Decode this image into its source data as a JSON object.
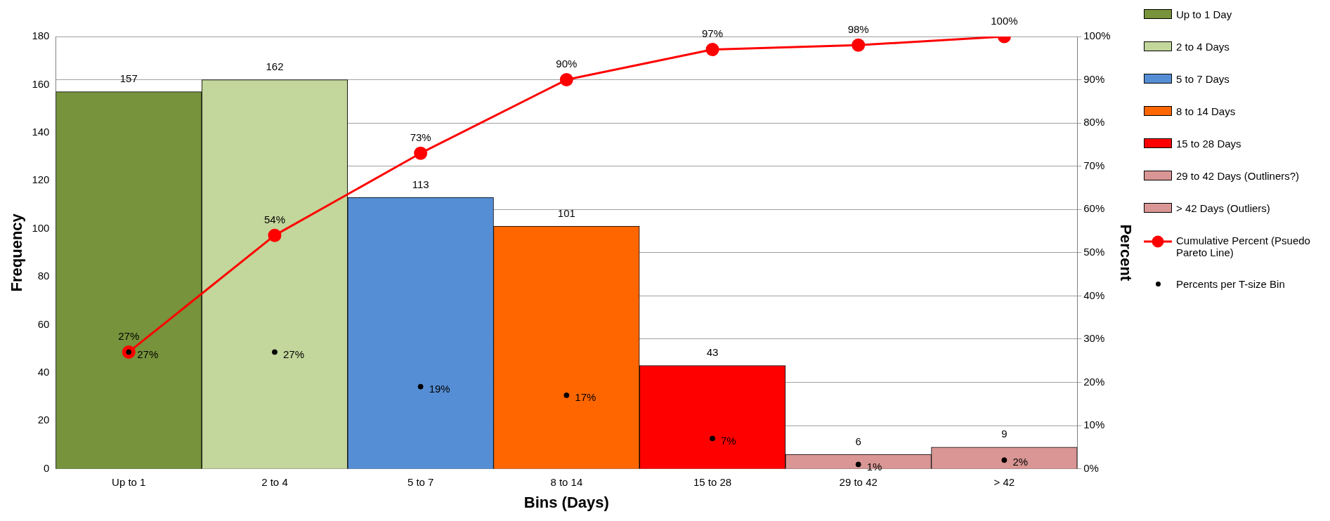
{
  "chart_data": {
    "type": "bar",
    "xlabel": "Bins (Days)",
    "ylabel": "Frequency",
    "y2label": "Percent",
    "categories": [
      "Up to 1",
      "2 to 4",
      "5 to 7",
      "8 to 14",
      "15 to 28",
      "29 to 42",
      "> 42"
    ],
    "ylim": [
      0,
      180
    ],
    "yticks": [
      0,
      20,
      40,
      60,
      80,
      100,
      120,
      140,
      160,
      180
    ],
    "y2lim": [
      0,
      100
    ],
    "y2ticks": [
      {
        "value": 0,
        "label": "0%"
      },
      {
        "value": 10,
        "label": "10%"
      },
      {
        "value": 20,
        "label": "20%"
      },
      {
        "value": 30,
        "label": "30%"
      },
      {
        "value": 40,
        "label": "40%"
      },
      {
        "value": 50,
        "label": "50%"
      },
      {
        "value": 60,
        "label": "60%"
      },
      {
        "value": 70,
        "label": "70%"
      },
      {
        "value": 80,
        "label": "80%"
      },
      {
        "value": 90,
        "label": "90%"
      },
      {
        "value": 100,
        "label": "100%"
      }
    ],
    "grid": "y2",
    "legend": "right",
    "series": [
      {
        "name": "Up to 1 Day",
        "color": "#77933c",
        "values": [
          157,
          null,
          null,
          null,
          null,
          null,
          null
        ],
        "value_labels": [
          "157",
          null,
          null,
          null,
          null,
          null,
          null
        ]
      },
      {
        "name": "2 to 4 Days",
        "color": "#c3d69b",
        "values": [
          null,
          162,
          null,
          null,
          null,
          null,
          null
        ],
        "value_labels": [
          null,
          "162",
          null,
          null,
          null,
          null,
          null
        ]
      },
      {
        "name": "5 to 7 Days",
        "color": "#558ed5",
        "values": [
          null,
          null,
          113,
          null,
          null,
          null,
          null
        ],
        "value_labels": [
          null,
          null,
          "113",
          null,
          null,
          null,
          null
        ]
      },
      {
        "name": "8 to 14 Days",
        "color": "#ff6600",
        "values": [
          null,
          null,
          null,
          101,
          null,
          null,
          null
        ],
        "value_labels": [
          null,
          null,
          null,
          "101",
          null,
          null,
          null
        ]
      },
      {
        "name": "15 to 28 Days",
        "color": "#ff0000",
        "values": [
          null,
          null,
          null,
          null,
          43,
          null,
          null
        ],
        "value_labels": [
          null,
          null,
          null,
          null,
          "43",
          null,
          null
        ]
      },
      {
        "name": "29 to 42 Days (Outliners?)",
        "color": "#d99694",
        "values": [
          null,
          null,
          null,
          null,
          null,
          6,
          null
        ],
        "value_labels": [
          null,
          null,
          null,
          null,
          null,
          "6",
          null
        ]
      },
      {
        "name": "> 42 Days (Outliers)",
        "color": "#d99694",
        "values": [
          null,
          null,
          null,
          null,
          null,
          null,
          9
        ],
        "value_labels": [
          null,
          null,
          null,
          null,
          null,
          null,
          "9"
        ]
      },
      {
        "name": "Cumulative Percent (Psuedo Pareto Line)",
        "type": "line",
        "axis": "y2",
        "color": "#ff0000",
        "marker": "circle",
        "line_style": "solid",
        "values": [
          27,
          54,
          73,
          90,
          97,
          98,
          100
        ],
        "value_labels": [
          "27%",
          "54%",
          "73%",
          "90%",
          "97%",
          "98%",
          "100%"
        ]
      },
      {
        "name": "Percents per T-size Bin",
        "type": "scatter",
        "axis": "y2",
        "color": "#000000",
        "marker": "circle",
        "values": [
          27,
          27,
          19,
          17,
          7,
          1,
          2
        ],
        "value_labels": [
          "27%",
          "27%",
          "19%",
          "17%",
          "7%",
          "1%",
          "2%"
        ]
      }
    ]
  }
}
